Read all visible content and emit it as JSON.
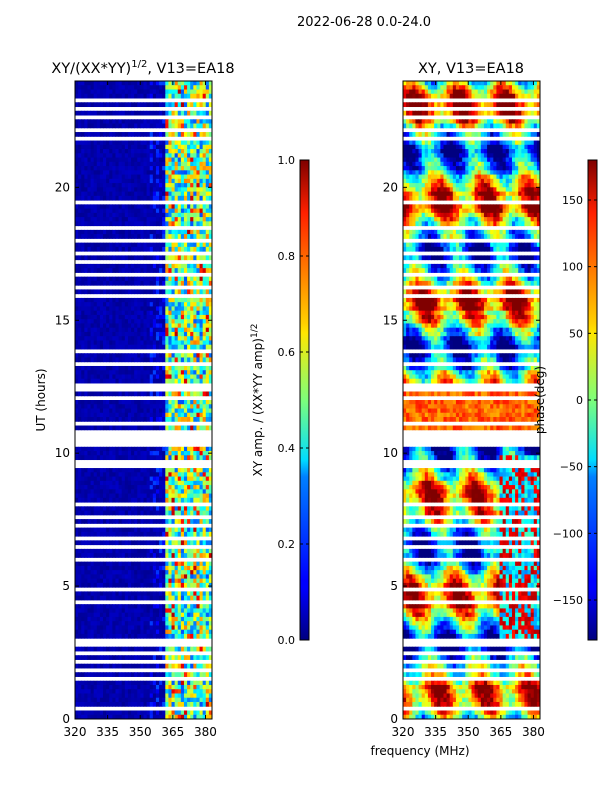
{
  "figure": {
    "suptitle": "2022-06-28 0.0-24.0",
    "xlabel_shared": "frequency (MHz)"
  },
  "chart_data": [
    {
      "type": "heatmap",
      "title_main": "XY/(XX*YY)",
      "title_exp": "1/2",
      "title_tail": ", V13=EA18",
      "xlabel": "",
      "ylabel": "UT (hours)",
      "xlim": [
        320,
        383
      ],
      "ylim": [
        0,
        24
      ],
      "xticks": [
        320,
        335,
        350,
        365,
        380
      ],
      "yticks": [
        0,
        5,
        10,
        15,
        20
      ],
      "colorbar": {
        "label": "XY amp. / (XX*YY amp)",
        "label_exp": "1/2",
        "range": [
          0.0,
          1.0
        ],
        "ticks": [
          "0.0",
          "0.2",
          "0.4",
          "0.6",
          "0.8",
          "1.0"
        ],
        "colormap": "jet"
      }
    },
    {
      "type": "heatmap",
      "title": "XY, V13=EA18",
      "xlabel": "frequency (MHz)",
      "ylabel": "",
      "xlim": [
        320,
        383
      ],
      "ylim": [
        0,
        24
      ],
      "xticks": [
        320,
        335,
        350,
        365,
        380
      ],
      "yticks": [
        0,
        5,
        10,
        15,
        20
      ],
      "colorbar": {
        "label": "phase(deg)",
        "range": [
          -180,
          180
        ],
        "ticks": [
          "-150",
          "-100",
          "-50",
          "0",
          "50",
          "100",
          "150"
        ],
        "colormap": "jet"
      }
    }
  ]
}
